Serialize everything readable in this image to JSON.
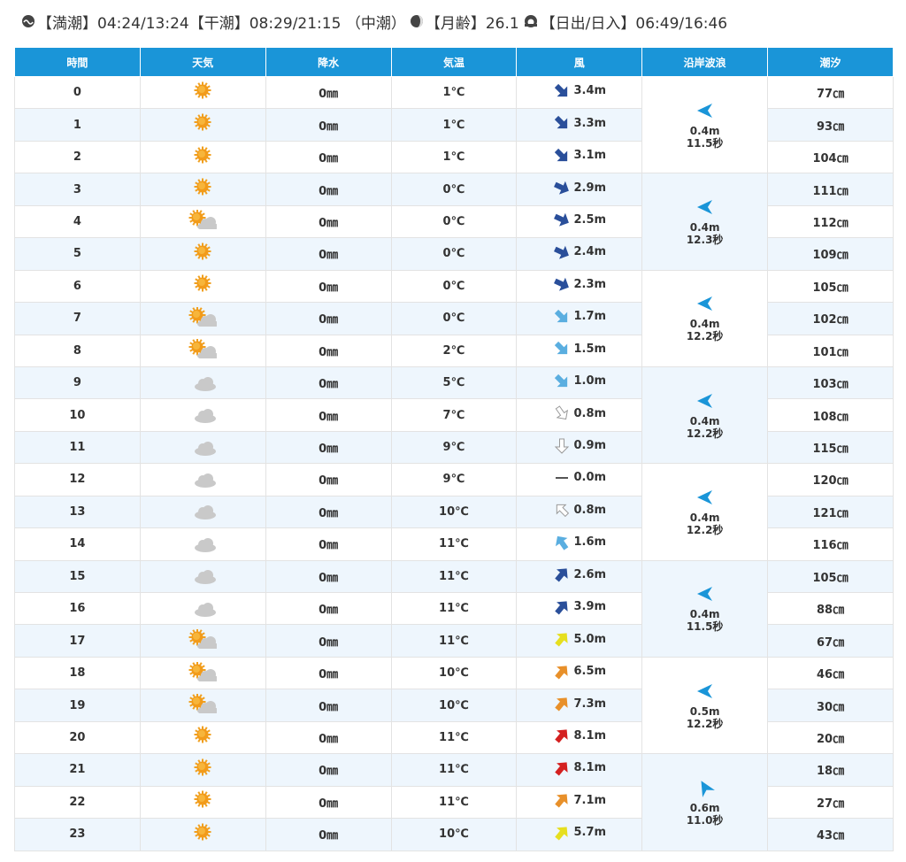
{
  "header": {
    "items": [
      "【満潮】04:24/13:24【干潮】08:29/21:15 （中潮）",
      "【月齢】26.1",
      "【日出/日入】06:49/16:46"
    ]
  },
  "table": {
    "columns": [
      "時間",
      "天気",
      "降水",
      "気温",
      "風",
      "沿岸波浪",
      "潮汐"
    ],
    "rows": [
      [
        "0",
        "0㎜",
        "1℃",
        "3.4m",
        "77㎝"
      ],
      [
        "1",
        "0㎜",
        "1℃",
        "3.3m",
        "93㎝"
      ],
      [
        "2",
        "0㎜",
        "1℃",
        "3.1m",
        "104㎝"
      ],
      [
        "3",
        "0㎜",
        "0℃",
        "2.9m",
        "111㎝"
      ],
      [
        "4",
        "0㎜",
        "0℃",
        "2.5m",
        "112㎝"
      ],
      [
        "5",
        "0㎜",
        "0℃",
        "2.4m",
        "109㎝"
      ],
      [
        "6",
        "0㎜",
        "0℃",
        "2.3m",
        "105㎝"
      ],
      [
        "7",
        "0㎜",
        "0℃",
        "1.7m",
        "102㎝"
      ],
      [
        "8",
        "0㎜",
        "2℃",
        "1.5m",
        "101㎝"
      ],
      [
        "9",
        "0㎜",
        "5℃",
        "1.0m",
        "103㎝"
      ],
      [
        "10",
        "0㎜",
        "7℃",
        "0.8m",
        "108㎝"
      ],
      [
        "11",
        "0㎜",
        "9℃",
        "0.9m",
        "115㎝"
      ],
      [
        "12",
        "0㎜",
        "9℃",
        "0.0m",
        "120㎝"
      ],
      [
        "13",
        "0㎜",
        "10℃",
        "0.8m",
        "121㎝"
      ],
      [
        "14",
        "0㎜",
        "11℃",
        "1.6m",
        "116㎝"
      ],
      [
        "15",
        "0㎜",
        "11℃",
        "2.6m",
        "105㎝"
      ],
      [
        "16",
        "0㎜",
        "11℃",
        "3.9m",
        "88㎝"
      ],
      [
        "17",
        "0㎜",
        "11℃",
        "5.0m",
        "67㎝"
      ],
      [
        "18",
        "0㎜",
        "10℃",
        "6.5m",
        "46㎝"
      ],
      [
        "19",
        "0㎜",
        "10℃",
        "7.3m",
        "30㎝"
      ],
      [
        "20",
        "0㎜",
        "11℃",
        "8.1m",
        "20㎝"
      ],
      [
        "21",
        "0㎜",
        "11℃",
        "8.1m",
        "18㎝"
      ],
      [
        "22",
        "0㎜",
        "11℃",
        "7.1m",
        "27㎝"
      ],
      [
        "23",
        "0㎜",
        "10℃",
        "5.7m",
        "43㎝"
      ]
    ],
    "waves": [
      [
        "0.4m",
        "11.5秒"
      ],
      [
        "0.4m",
        "12.3秒"
      ],
      [
        "0.4m",
        "12.2秒"
      ],
      [
        "0.4m",
        "12.2秒"
      ],
      [
        "0.4m",
        "12.2秒"
      ],
      [
        "0.4m",
        "11.5秒"
      ],
      [
        "0.5m",
        "12.2秒"
      ],
      [
        "0.6m",
        "11.0秒"
      ]
    ]
  }
}
